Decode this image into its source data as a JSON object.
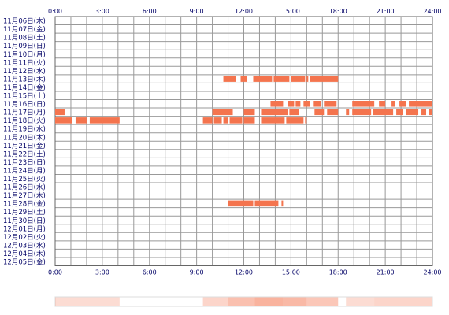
{
  "chart_data": {
    "type": "timeline",
    "x_range": [
      0,
      24
    ],
    "x_ticks": [
      {
        "hour": 0,
        "label": "0:00"
      },
      {
        "hour": 3,
        "label": "3:00"
      },
      {
        "hour": 6,
        "label": "6:00"
      },
      {
        "hour": 9,
        "label": "9:00"
      },
      {
        "hour": 12,
        "label": "12:00"
      },
      {
        "hour": 15,
        "label": "15:00"
      },
      {
        "hour": 18,
        "label": "18:00"
      },
      {
        "hour": 21,
        "label": "21:00"
      },
      {
        "hour": 24,
        "label": "24:00"
      }
    ],
    "grid_hours": [
      0,
      1,
      2,
      3,
      4,
      5,
      6,
      7,
      8,
      9,
      10,
      11,
      12,
      13,
      14,
      15,
      16,
      17,
      18,
      19,
      20,
      21,
      22,
      23,
      24
    ],
    "rows": [
      {
        "label": "11月06日(木)",
        "segments": []
      },
      {
        "label": "11月07日(金)",
        "segments": []
      },
      {
        "label": "11月08日(土)",
        "segments": []
      },
      {
        "label": "11月09日(日)",
        "segments": []
      },
      {
        "label": "11月10日(月)",
        "segments": []
      },
      {
        "label": "11月11日(火)",
        "segments": []
      },
      {
        "label": "11月12日(水)",
        "segments": []
      },
      {
        "label": "11月13日(木)",
        "segments": [
          [
            10.7,
            11.5
          ],
          [
            11.8,
            12.2
          ],
          [
            12.6,
            13.8
          ],
          [
            13.9,
            14.9
          ],
          [
            15.0,
            15.9
          ],
          [
            16.0,
            16.1
          ],
          [
            16.2,
            18.0
          ]
        ]
      },
      {
        "label": "11月14日(金)",
        "segments": []
      },
      {
        "label": "11月15日(土)",
        "segments": []
      },
      {
        "label": "11月16日(日)",
        "segments": [
          [
            13.7,
            14.5
          ],
          [
            14.8,
            15.2
          ],
          [
            15.3,
            15.6
          ],
          [
            15.8,
            16.2
          ],
          [
            16.4,
            16.9
          ],
          [
            17.1,
            17.9
          ],
          [
            18.9,
            20.3
          ],
          [
            20.6,
            21.0
          ],
          [
            21.4,
            21.6
          ],
          [
            21.9,
            22.3
          ],
          [
            22.5,
            24.0
          ]
        ]
      },
      {
        "label": "11月17日(月)",
        "segments": [
          [
            0.0,
            0.6
          ],
          [
            10.0,
            11.3
          ],
          [
            12.0,
            12.7
          ],
          [
            13.1,
            14.8
          ],
          [
            14.9,
            15.5
          ],
          [
            16.5,
            17.1
          ],
          [
            17.3,
            18.0
          ],
          [
            18.5,
            18.7
          ],
          [
            18.9,
            20.1
          ],
          [
            20.2,
            21.5
          ],
          [
            21.7,
            22.1
          ],
          [
            22.3,
            23.1
          ],
          [
            23.3,
            23.6
          ],
          [
            23.8,
            24.0
          ]
        ]
      },
      {
        "label": "11月18日(火)",
        "segments": [
          [
            0.0,
            1.1
          ],
          [
            1.3,
            2.0
          ],
          [
            2.2,
            4.1
          ],
          [
            9.4,
            10.0
          ],
          [
            10.1,
            10.6
          ],
          [
            10.7,
            11.0
          ],
          [
            11.1,
            11.9
          ],
          [
            12.0,
            12.7
          ],
          [
            13.1,
            14.6
          ],
          [
            14.7,
            15.8
          ],
          [
            15.9,
            16.0
          ]
        ]
      },
      {
        "label": "11月19日(水)",
        "segments": []
      },
      {
        "label": "11月20日(木)",
        "segments": []
      },
      {
        "label": "11月21日(金)",
        "segments": []
      },
      {
        "label": "11月22日(土)",
        "segments": []
      },
      {
        "label": "11月23日(日)",
        "segments": []
      },
      {
        "label": "11月24日(月)",
        "segments": []
      },
      {
        "label": "11月25日(火)",
        "segments": []
      },
      {
        "label": "11月26日(水)",
        "segments": []
      },
      {
        "label": "11月27日(木)",
        "segments": []
      },
      {
        "label": "11月28日(金)",
        "segments": [
          [
            11.0,
            12.6
          ],
          [
            12.7,
            14.2
          ],
          [
            14.4,
            14.5
          ]
        ]
      },
      {
        "label": "11月29日(土)",
        "segments": []
      },
      {
        "label": "11月30日(日)",
        "segments": []
      },
      {
        "label": "12月01日(月)",
        "segments": []
      },
      {
        "label": "12月02日(火)",
        "segments": []
      },
      {
        "label": "12月03日(水)",
        "segments": []
      },
      {
        "label": "12月04日(木)",
        "segments": []
      },
      {
        "label": "12月05日(金)",
        "segments": []
      }
    ],
    "summary_heatmap": [
      {
        "range": [
          0.0,
          4.1
        ],
        "level": 0.25
      },
      {
        "range": [
          9.4,
          11.0
        ],
        "level": 0.3
      },
      {
        "range": [
          11.0,
          12.7
        ],
        "level": 0.45
      },
      {
        "range": [
          12.7,
          14.5
        ],
        "level": 0.55
      },
      {
        "range": [
          14.5,
          16.0
        ],
        "level": 0.5
      },
      {
        "range": [
          16.0,
          18.0
        ],
        "level": 0.4
      },
      {
        "range": [
          18.5,
          20.3
        ],
        "level": 0.25
      },
      {
        "range": [
          20.3,
          24.0
        ],
        "level": 0.3
      }
    ],
    "colors": {
      "activity": "#f4744e",
      "grid": "#999999",
      "grid_border": "#666666",
      "text": "#000066",
      "heatmap_base": "#f4744e",
      "heatmap_track": "#dddddd"
    }
  }
}
